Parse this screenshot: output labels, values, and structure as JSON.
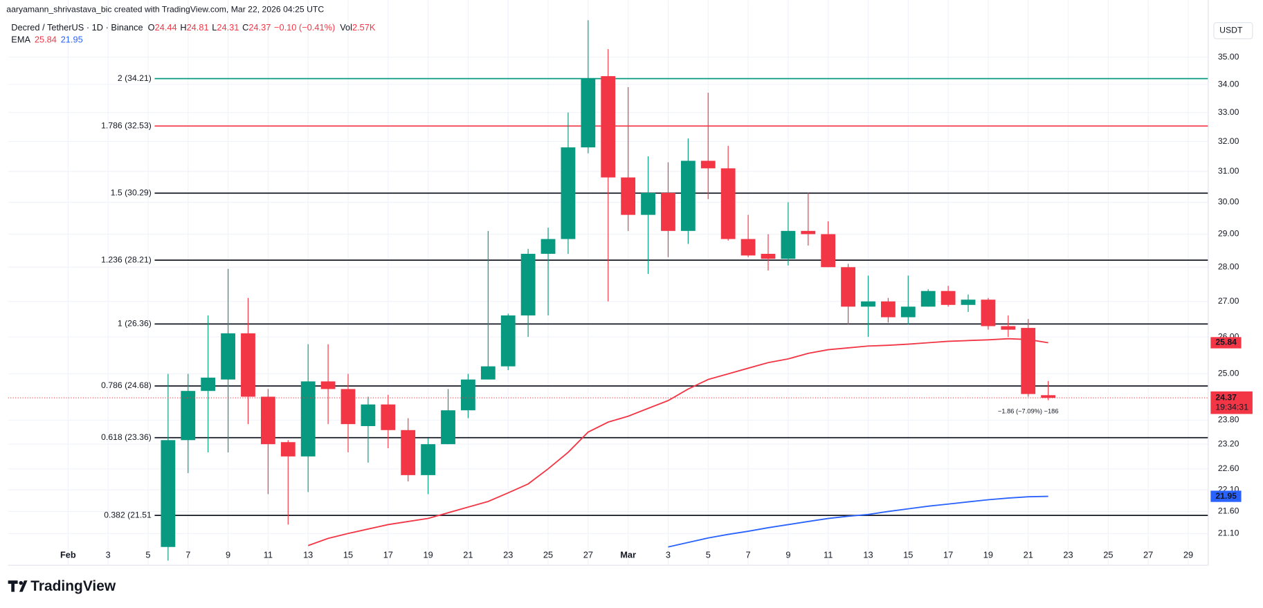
{
  "chart_data": {
    "type": "candlestick",
    "credit": "aaryamann_shrivastava_bic created with TradingView.com, Mar 22, 2026 04:25 UTC",
    "symbol": "Decred / TetherUS · 1D · Binance",
    "field_labels": [
      "O",
      "H",
      "L",
      "C"
    ],
    "change": "−0.10 (−0.41%)",
    "volume_label": "Vol",
    "volume": "2.57K",
    "currency": "USDT",
    "countdown": "19:34:31",
    "measure_annotation": "−1.86 (−7.09%) −186",
    "logo": "TradingView",
    "up_color": "#089981",
    "down_color": "#f23645",
    "log_scale": true,
    "grid": true,
    "x": [
      "2026-02-06",
      "2026-02-07",
      "2026-02-08",
      "2026-02-09",
      "2026-02-10",
      "2026-02-11",
      "2026-02-12",
      "2026-02-13",
      "2026-02-14",
      "2026-02-15",
      "2026-02-16",
      "2026-02-17",
      "2026-02-18",
      "2026-02-19",
      "2026-02-20",
      "2026-02-21",
      "2026-02-22",
      "2026-02-23",
      "2026-02-24",
      "2026-02-25",
      "2026-02-26",
      "2026-02-27",
      "2026-02-28",
      "2026-03-01",
      "2026-03-02",
      "2026-03-03",
      "2026-03-04",
      "2026-03-05",
      "2026-03-06",
      "2026-03-07",
      "2026-03-08",
      "2026-03-09",
      "2026-03-10",
      "2026-03-11",
      "2026-03-12",
      "2026-03-13",
      "2026-03-14",
      "2026-03-15",
      "2026-03-16",
      "2026-03-17",
      "2026-03-18",
      "2026-03-19",
      "2026-03-20",
      "2026-03-21",
      "2026-03-22"
    ],
    "open": [
      20.8,
      23.3,
      24.55,
      24.85,
      26.1,
      24.4,
      23.25,
      22.9,
      24.8,
      24.6,
      23.65,
      24.2,
      23.55,
      22.45,
      23.2,
      24.05,
      24.85,
      25.2,
      26.6,
      28.4,
      28.85,
      31.8,
      34.3,
      30.8,
      29.6,
      30.3,
      29.1,
      31.35,
      31.1,
      28.85,
      28.4,
      28.25,
      29.1,
      29.0,
      28.0,
      26.85,
      27.0,
      26.55,
      26.85,
      27.3,
      26.9,
      27.05,
      26.3,
      26.25,
      24.44
    ],
    "high": [
      25.0,
      25.0,
      26.6,
      27.95,
      27.1,
      24.6,
      23.3,
      25.8,
      25.8,
      25.0,
      24.4,
      24.45,
      23.85,
      23.35,
      24.6,
      25.0,
      29.1,
      26.65,
      28.55,
      29.2,
      33.0,
      36.6,
      35.3,
      33.9,
      31.5,
      31.3,
      32.1,
      33.7,
      31.85,
      29.6,
      29.0,
      30.0,
      30.3,
      29.4,
      28.1,
      27.75,
      27.1,
      27.75,
      27.35,
      27.45,
      27.2,
      27.1,
      26.6,
      26.5,
      24.81
    ],
    "low": [
      20.5,
      22.5,
      23.0,
      23.0,
      23.7,
      22.0,
      21.3,
      22.05,
      23.7,
      23.0,
      22.75,
      23.1,
      22.3,
      22.0,
      23.2,
      23.85,
      24.85,
      25.1,
      26.0,
      26.6,
      28.4,
      31.6,
      27.0,
      29.1,
      27.8,
      28.3,
      28.7,
      30.1,
      28.8,
      28.3,
      27.9,
      28.05,
      28.65,
      28.0,
      26.35,
      26.0,
      26.4,
      26.35,
      26.85,
      26.85,
      26.7,
      26.2,
      26.0,
      24.4,
      24.31
    ],
    "close": [
      23.3,
      24.55,
      24.9,
      26.1,
      24.4,
      23.2,
      22.9,
      24.8,
      24.6,
      23.7,
      24.2,
      23.55,
      22.45,
      23.2,
      24.05,
      24.85,
      25.2,
      26.6,
      28.4,
      28.85,
      31.8,
      34.2,
      30.8,
      29.6,
      30.3,
      29.1,
      31.35,
      31.1,
      28.85,
      28.35,
      28.25,
      29.1,
      29.0,
      28.0,
      26.85,
      27.0,
      26.55,
      26.85,
      27.3,
      26.9,
      27.05,
      26.3,
      26.2,
      24.47,
      24.37
    ],
    "indicator": "EMA",
    "ema_series": [
      {
        "color": "#f23645",
        "values": [
          null,
          null,
          null,
          null,
          null,
          null,
          null,
          20.83,
          20.99,
          21.1,
          21.2,
          21.3,
          21.37,
          21.44,
          21.57,
          21.7,
          21.83,
          22.03,
          22.24,
          22.6,
          23.0,
          23.5,
          23.75,
          23.9,
          24.1,
          24.3,
          24.6,
          24.85,
          25.0,
          25.15,
          25.3,
          25.4,
          25.55,
          25.65,
          25.7,
          25.75,
          25.77,
          25.8,
          25.84,
          25.88,
          25.9,
          25.92,
          25.95,
          25.93,
          25.84
        ]
      },
      {
        "color": "#2962ff",
        "values": [
          null,
          null,
          null,
          null,
          null,
          null,
          null,
          null,
          null,
          null,
          null,
          null,
          null,
          null,
          null,
          null,
          null,
          null,
          null,
          null,
          null,
          null,
          null,
          null,
          null,
          20.8,
          20.9,
          21.0,
          21.08,
          21.15,
          21.23,
          21.3,
          21.37,
          21.44,
          21.49,
          21.53,
          21.6,
          21.66,
          21.72,
          21.77,
          21.82,
          21.87,
          21.91,
          21.94,
          21.95
        ]
      }
    ],
    "fib_levels": [
      {
        "label": "2 (34.21)",
        "value": 34.21,
        "color": "#089981"
      },
      {
        "label": "1.786 (32.53)",
        "value": 32.53,
        "color": "#f23645"
      },
      {
        "label": "1.5 (30.29)",
        "value": 30.29,
        "color": "#131722"
      },
      {
        "label": "1.236 (28.21)",
        "value": 28.21,
        "color": "#131722"
      },
      {
        "label": "1 (26.36)",
        "value": 26.36,
        "color": "#131722"
      },
      {
        "label": "0.786 (24.68)",
        "value": 24.68,
        "color": "#131722"
      },
      {
        "label": "0.618 (23.36)",
        "value": 23.36,
        "color": "#131722"
      },
      {
        "label": "0.382 (21.51",
        "value": 21.51,
        "color": "#131722"
      }
    ],
    "xlim": [
      "2026-01-29",
      "2026-03-30"
    ],
    "xticks": [
      {
        "value": "2026-02-01",
        "label": "Feb"
      },
      {
        "value": "2026-02-03",
        "label": "3"
      },
      {
        "value": "2026-02-05",
        "label": "5"
      },
      {
        "value": "2026-02-07",
        "label": "7"
      },
      {
        "value": "2026-02-09",
        "label": "9"
      },
      {
        "value": "2026-02-11",
        "label": "11"
      },
      {
        "value": "2026-02-13",
        "label": "13"
      },
      {
        "value": "2026-02-15",
        "label": "15"
      },
      {
        "value": "2026-02-17",
        "label": "17"
      },
      {
        "value": "2026-02-19",
        "label": "19"
      },
      {
        "value": "2026-02-21",
        "label": "21"
      },
      {
        "value": "2026-02-23",
        "label": "23"
      },
      {
        "value": "2026-02-25",
        "label": "25"
      },
      {
        "value": "2026-02-27",
        "label": "27"
      },
      {
        "value": "2026-03-01",
        "label": "Mar"
      },
      {
        "value": "2026-03-03",
        "label": "3"
      },
      {
        "value": "2026-03-05",
        "label": "5"
      },
      {
        "value": "2026-03-07",
        "label": "7"
      },
      {
        "value": "2026-03-09",
        "label": "9"
      },
      {
        "value": "2026-03-11",
        "label": "11"
      },
      {
        "value": "2026-03-13",
        "label": "13"
      },
      {
        "value": "2026-03-15",
        "label": "15"
      },
      {
        "value": "2026-03-17",
        "label": "17"
      },
      {
        "value": "2026-03-19",
        "label": "19"
      },
      {
        "value": "2026-03-21",
        "label": "21"
      },
      {
        "value": "2026-03-23",
        "label": "23"
      },
      {
        "value": "2026-03-25",
        "label": "25"
      },
      {
        "value": "2026-03-27",
        "label": "27"
      },
      {
        "value": "2026-03-29",
        "label": "29"
      }
    ],
    "ylim": [
      20.4,
      36.4
    ],
    "yticks": [
      {
        "value": 35,
        "label": "35.00"
      },
      {
        "value": 34,
        "label": "34.00"
      },
      {
        "value": 33,
        "label": "33.00"
      },
      {
        "value": 32,
        "label": "32.00"
      },
      {
        "value": 31,
        "label": "31.00"
      },
      {
        "value": 30,
        "label": "30.00"
      },
      {
        "value": 29,
        "label": "29.00"
      },
      {
        "value": 28,
        "label": "28.00"
      },
      {
        "value": 27,
        "label": "27.00"
      },
      {
        "value": 26,
        "label": "26.00"
      },
      {
        "value": 25,
        "label": "25.00"
      },
      {
        "value": 23.8,
        "label": "23.80"
      },
      {
        "value": 23.2,
        "label": "23.20"
      },
      {
        "value": 22.6,
        "label": "22.60"
      },
      {
        "value": 22.1,
        "label": "22.10"
      },
      {
        "value": 21.6,
        "label": "21.60"
      },
      {
        "value": 21.1,
        "label": "21.10"
      }
    ]
  }
}
